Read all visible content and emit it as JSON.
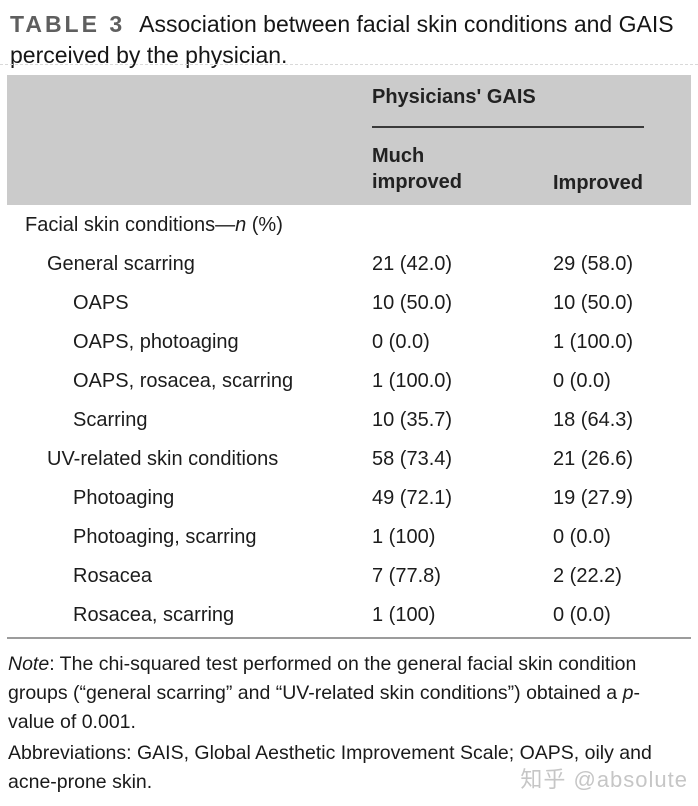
{
  "caption": {
    "tag": "TABLE 3",
    "text": "Association between facial skin conditions and GAIS perceived by the physician."
  },
  "table": {
    "group_header": "Physicians' GAIS",
    "columns": {
      "col1": "Much improved",
      "col2": "Improved"
    },
    "section_header": {
      "prefix": "Facial skin conditions—",
      "italic_n": "n",
      "suffix": " (%)"
    },
    "rows": [
      {
        "label": "General scarring",
        "indent": 1,
        "much_improved": "21 (42.0)",
        "improved": "29 (58.0)"
      },
      {
        "label": "OAPS",
        "indent": 2,
        "much_improved": "10 (50.0)",
        "improved": "10 (50.0)"
      },
      {
        "label": "OAPS, photoaging",
        "indent": 2,
        "much_improved": "0 (0.0)",
        "improved": "1 (100.0)"
      },
      {
        "label": "OAPS, rosacea, scarring",
        "indent": 2,
        "much_improved": "1 (100.0)",
        "improved": "0 (0.0)"
      },
      {
        "label": "Scarring",
        "indent": 2,
        "much_improved": "10 (35.7)",
        "improved": "18 (64.3)"
      },
      {
        "label": "UV-related skin conditions",
        "indent": 1,
        "much_improved": "58 (73.4)",
        "improved": "21 (26.6)"
      },
      {
        "label": "Photoaging",
        "indent": 2,
        "much_improved": "49 (72.1)",
        "improved": "19 (27.9)"
      },
      {
        "label": "Photoaging, scarring",
        "indent": 2,
        "much_improved": "1 (100)",
        "improved": "0 (0.0)"
      },
      {
        "label": "Rosacea",
        "indent": 2,
        "much_improved": "7 (77.8)",
        "improved": "2 (22.2)"
      },
      {
        "label": "Rosacea, scarring",
        "indent": 2,
        "much_improved": "1 (100)",
        "improved": "0 (0.0)"
      }
    ]
  },
  "footnotes": {
    "note": {
      "label": "Note",
      "segment1": ": The chi-squared test performed on the general facial skin condition groups (“general scarring” and “UV-related skin conditions”) obtained a ",
      "p": "p",
      "segment2": "-value of 0.001."
    },
    "abbreviations": "Abbreviations: GAIS, Global Aesthetic Improvement Scale; OAPS, oily and acne-prone skin."
  },
  "watermark": "知乎 @absolute",
  "colors": {
    "header_block_bg": "#cbcbcb",
    "caption_tag": "#5f5f5f",
    "text": "#1c1c1c",
    "header_underline": "#3a3a3a",
    "bottom_rule": "#9c9c9c",
    "watermark": "#c6c6c6"
  }
}
